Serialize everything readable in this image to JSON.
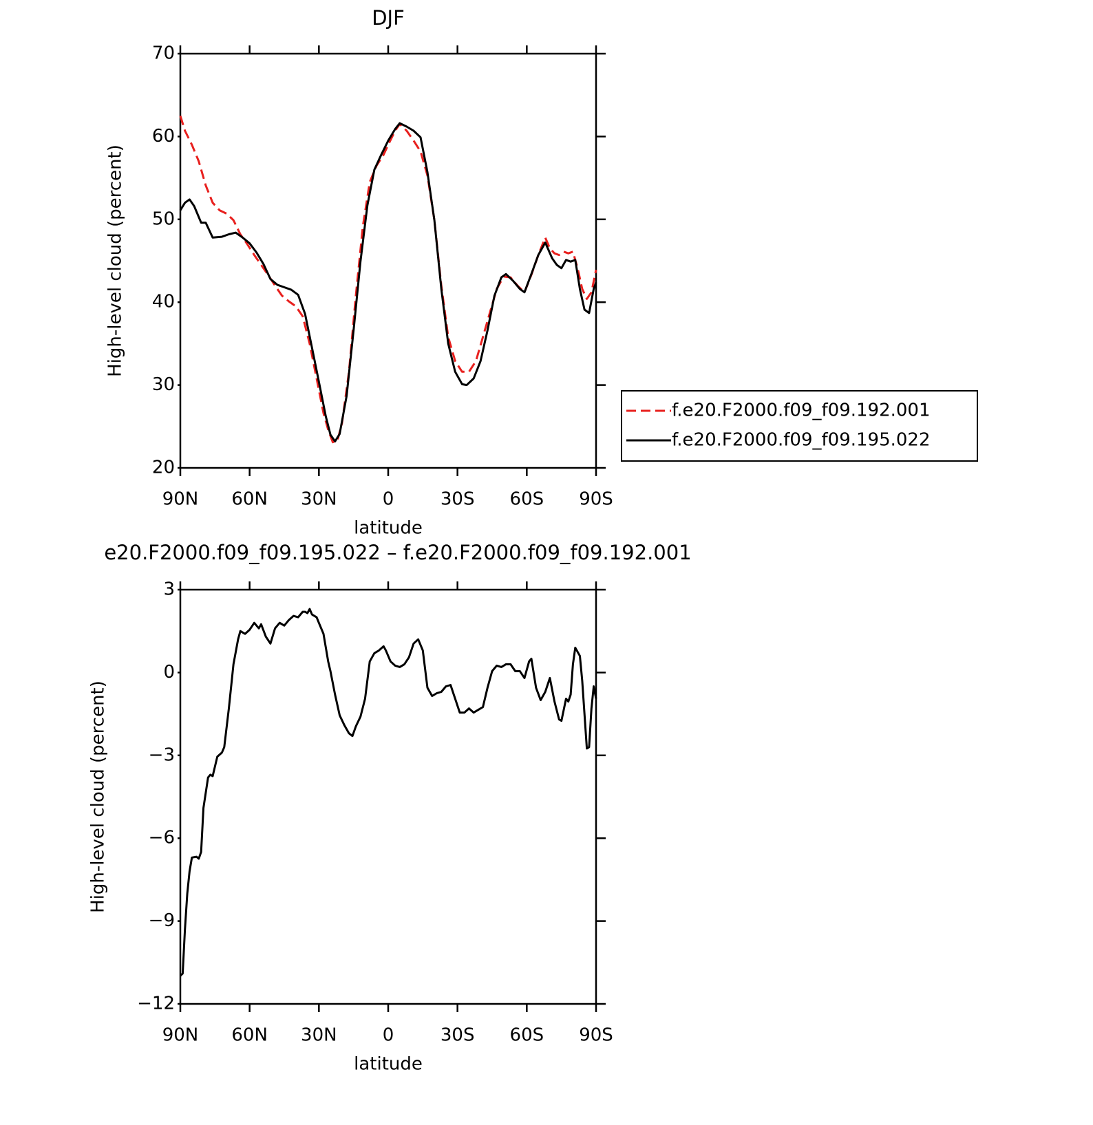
{
  "chart_data": [
    {
      "type": "line",
      "title": "DJF",
      "xlabel": "latitude",
      "ylabel": "High-level cloud (percent)",
      "xlim": [
        90,
        -90
      ],
      "xticks": [
        {
          "value": 90,
          "label": "90N"
        },
        {
          "value": 60,
          "label": "60N"
        },
        {
          "value": 30,
          "label": "30N"
        },
        0,
        {
          "value": -30,
          "label": "30S"
        },
        {
          "value": -60,
          "label": "60S"
        },
        {
          "value": -90,
          "label": "90S"
        }
      ],
      "ylim": [
        20,
        70
      ],
      "yticks": [
        20,
        30,
        40,
        50,
        60,
        70
      ],
      "legend": "right",
      "series": [
        {
          "name": "f.e20.F2000.f09_f09.192.001",
          "color": "#e8201e",
          "dash": true,
          "x": [
            90,
            88,
            85,
            82,
            79,
            76,
            73,
            70,
            67,
            64,
            61,
            58,
            55,
            52,
            49,
            46,
            43,
            40,
            37,
            34,
            31,
            28,
            26,
            24,
            22,
            20,
            17,
            14,
            11,
            8,
            5,
            2,
            0,
            -3,
            -5,
            -8,
            -11,
            -14,
            -17,
            -20,
            -23,
            -26,
            -29,
            -32,
            -35,
            -38,
            -41,
            -44,
            -47,
            -50,
            -53,
            -56,
            -59,
            -62,
            -65,
            -68,
            -70,
            -72,
            -74,
            -76,
            -78,
            -80,
            -82,
            -84,
            -86,
            -88,
            -90
          ],
          "values": [
            62.5,
            60.7,
            59.0,
            57.0,
            54.1,
            52.0,
            51.1,
            50.7,
            49.9,
            48.2,
            47.0,
            45.7,
            44.5,
            43.3,
            42.0,
            40.8,
            40.1,
            39.5,
            38.3,
            35.0,
            30.8,
            26.6,
            24.6,
            23.1,
            23.3,
            25.4,
            31.6,
            40.8,
            49.1,
            54.5,
            56.5,
            57.8,
            59.0,
            60.7,
            61.5,
            60.7,
            59.5,
            58.2,
            55.3,
            49.9,
            42.0,
            35.8,
            32.9,
            31.6,
            31.6,
            32.9,
            35.8,
            38.7,
            41.6,
            43.1,
            43.0,
            42.0,
            41.2,
            43.3,
            45.7,
            47.8,
            46.5,
            45.9,
            45.7,
            46.1,
            45.9,
            46.1,
            44.1,
            41.6,
            40.4,
            41.2,
            43.9
          ]
        },
        {
          "name": "f.e20.F2000.f09_f09.195.022",
          "color": "#000000",
          "dash": false,
          "x": [
            90,
            88,
            86,
            84,
            81,
            79,
            76,
            72,
            69,
            66,
            63,
            60,
            57,
            54,
            51,
            48,
            45,
            42,
            39,
            36,
            33,
            30,
            27,
            25,
            23,
            21,
            18,
            15,
            12,
            9,
            6,
            3,
            0,
            -3,
            -5,
            -8,
            -11,
            -14,
            -17,
            -20,
            -23,
            -26,
            -29,
            -32,
            -34,
            -37,
            -40,
            -43,
            -46,
            -49,
            -51,
            -54,
            -57,
            -59,
            -62,
            -65,
            -68,
            -71,
            -73,
            -75,
            -77,
            -79,
            -81,
            -83,
            -85,
            -87,
            -89,
            -90
          ],
          "values": [
            51.1,
            52.0,
            52.4,
            51.6,
            49.6,
            49.6,
            47.8,
            47.9,
            48.2,
            48.4,
            47.8,
            47.1,
            46.0,
            44.6,
            42.8,
            42.1,
            41.8,
            41.5,
            40.9,
            38.6,
            34.5,
            30.4,
            26.2,
            24.0,
            23.2,
            24.1,
            28.7,
            36.6,
            44.9,
            51.7,
            56.0,
            57.8,
            59.5,
            60.9,
            61.6,
            61.2,
            60.7,
            59.9,
            55.7,
            49.9,
            41.6,
            35.0,
            31.6,
            30.1,
            30.0,
            30.8,
            32.9,
            36.6,
            40.8,
            43.0,
            43.4,
            42.6,
            41.6,
            41.2,
            43.4,
            45.7,
            47.2,
            45.3,
            44.5,
            44.1,
            45.1,
            44.9,
            45.1,
            41.6,
            39.1,
            38.7,
            41.6,
            42.4
          ]
        }
      ]
    },
    {
      "type": "line",
      "title": "e20.F2000.f09_f09.195.022 – f.e20.F2000.f09_f09.192.001",
      "xlabel": "latitude",
      "ylabel": "High-level cloud (percent)",
      "xlim": [
        90,
        -90
      ],
      "xticks": [
        {
          "value": 90,
          "label": "90N"
        },
        {
          "value": 60,
          "label": "60N"
        },
        {
          "value": 30,
          "label": "30N"
        },
        0,
        {
          "value": -30,
          "label": "30S"
        },
        {
          "value": -60,
          "label": "60S"
        },
        {
          "value": -90,
          "label": "90S"
        }
      ],
      "ylim": [
        -12,
        3
      ],
      "yticks": [
        {
          "value": -12,
          "label": "−12"
        },
        {
          "value": -9,
          "label": "−9"
        },
        {
          "value": -6,
          "label": "−6"
        },
        {
          "value": -3,
          "label": "−3"
        },
        0,
        3
      ],
      "series": [
        {
          "color": "#000000",
          "dash": false,
          "x": [
            90,
            89,
            88,
            87,
            86,
            85,
            83,
            82,
            81,
            80,
            78,
            77,
            76,
            74,
            72,
            71,
            69,
            67,
            65,
            64,
            62,
            60,
            58,
            57,
            56,
            55,
            53,
            51,
            49,
            47,
            45,
            43,
            41,
            39,
            37,
            36,
            35,
            34,
            33,
            31,
            30,
            28,
            26,
            25,
            23,
            21,
            19,
            17,
            15.5,
            14,
            12,
            10,
            8,
            6,
            4,
            2,
            1,
            -1,
            -3,
            -5,
            -7,
            -9,
            -11,
            -13,
            -15,
            -17,
            -19,
            -21,
            -23,
            -25,
            -27,
            -29,
            -31,
            -33,
            -35,
            -37,
            -39,
            -41,
            -43,
            -45,
            -47,
            -49,
            -51,
            -53,
            -55,
            -57,
            -59,
            -61,
            -62,
            -64,
            -66,
            -68,
            -70,
            -72,
            -74,
            -75,
            -77,
            -78,
            -79,
            -80,
            -81,
            -83,
            -84,
            -86,
            -87,
            -88,
            -89,
            -90
          ],
          "values": [
            -10.98,
            -10.9,
            -9.3,
            -8.0,
            -7.2,
            -6.7,
            -6.67,
            -6.74,
            -6.5,
            -4.9,
            -3.8,
            -3.7,
            -3.75,
            -3.05,
            -2.9,
            -2.7,
            -1.3,
            0.3,
            1.2,
            1.5,
            1.4,
            1.55,
            1.8,
            1.7,
            1.6,
            1.75,
            1.3,
            1.05,
            1.6,
            1.8,
            1.7,
            1.9,
            2.05,
            2.0,
            2.2,
            2.2,
            2.15,
            2.3,
            2.1,
            2.0,
            1.8,
            1.4,
            0.4,
            0.05,
            -0.8,
            -1.55,
            -1.9,
            -2.2,
            -2.3,
            -1.95,
            -1.6,
            -0.95,
            0.4,
            0.7,
            0.8,
            0.95,
            0.8,
            0.4,
            0.25,
            0.2,
            0.3,
            0.55,
            1.05,
            1.2,
            0.8,
            -0.55,
            -0.85,
            -0.75,
            -0.7,
            -0.5,
            -0.45,
            -0.95,
            -1.45,
            -1.45,
            -1.3,
            -1.45,
            -1.35,
            -1.25,
            -0.55,
            0.05,
            0.25,
            0.2,
            0.3,
            0.3,
            0.05,
            0.05,
            -0.2,
            0.4,
            0.5,
            -0.55,
            -1.0,
            -0.7,
            -0.2,
            -1.05,
            -1.7,
            -1.75,
            -0.95,
            -1.05,
            -0.8,
            0.3,
            0.9,
            0.6,
            -0.3,
            -2.75,
            -2.7,
            -1.3,
            -0.5,
            -0.95
          ]
        }
      ]
    }
  ]
}
